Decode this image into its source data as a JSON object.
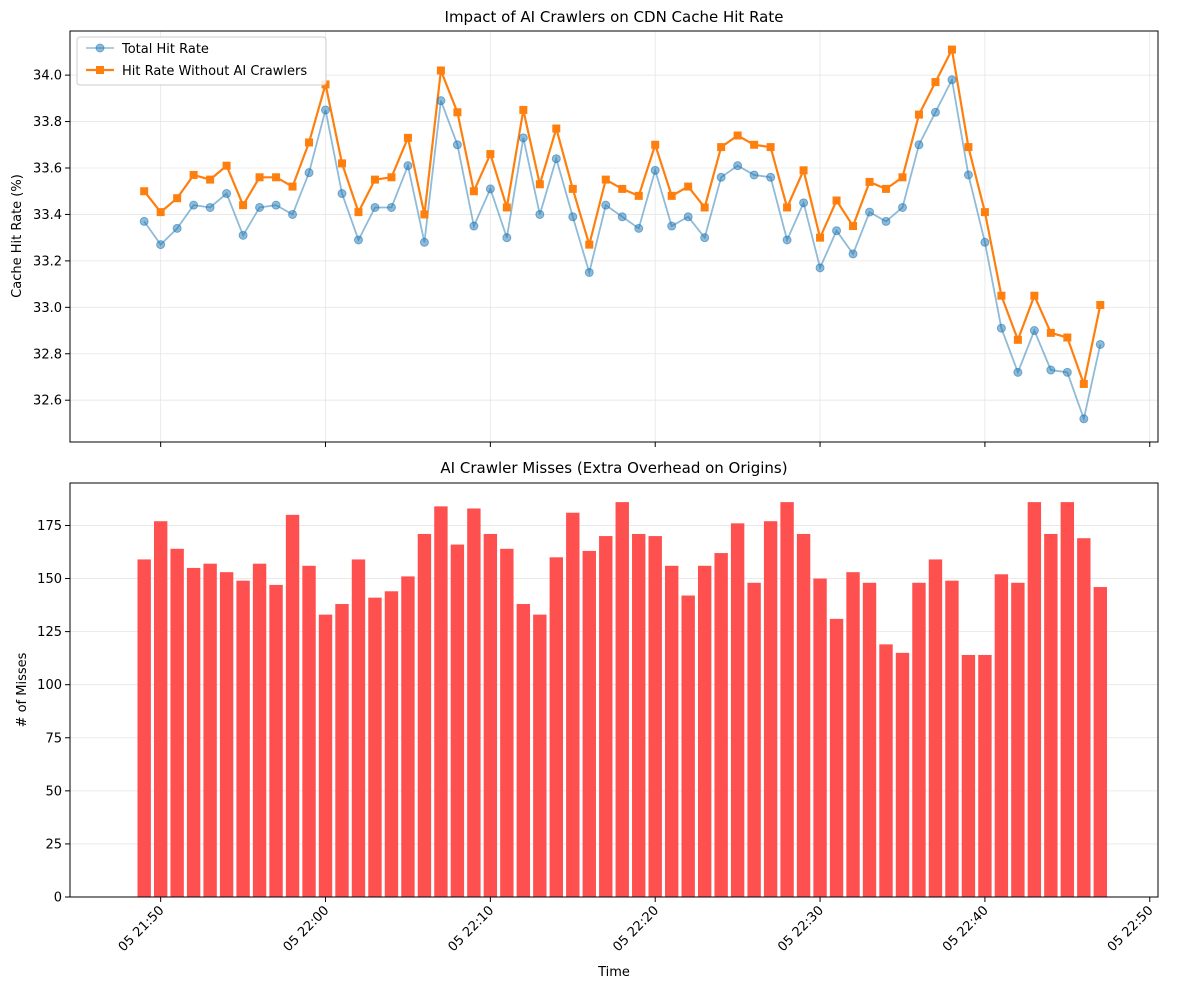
{
  "chart_data": [
    {
      "type": "line",
      "title": "Impact of AI Crawlers on CDN Cache Hit Rate",
      "xlabel": "",
      "ylabel": "Cache Hit Rate (%)",
      "ylim": [
        32.42,
        34.19
      ],
      "yticks": [
        32.6,
        32.8,
        33.0,
        33.2,
        33.4,
        33.6,
        33.8,
        34.0
      ],
      "ytick_labels": [
        "32.6",
        "32.8",
        "33.0",
        "33.2",
        "33.4",
        "33.6",
        "33.8",
        "34.0"
      ],
      "grid": true,
      "legend_position": "top-left",
      "x_minutes": [
        -1,
        0,
        1,
        2,
        3,
        4,
        5,
        6,
        7,
        8,
        9,
        10,
        11,
        12,
        13,
        14,
        15,
        16,
        17,
        18,
        19,
        20,
        21,
        22,
        23,
        24,
        25,
        26,
        27,
        28,
        29,
        30,
        31,
        32,
        33,
        34,
        35,
        36,
        37,
        38,
        39,
        40,
        41,
        42,
        43,
        44,
        45,
        46,
        47,
        48,
        49,
        50,
        51,
        52,
        53,
        54,
        55,
        56,
        57
      ],
      "series": [
        {
          "name": "Total Hit Rate",
          "color": "#1f77b4",
          "marker": "circle",
          "values": [
            33.37,
            33.27,
            33.34,
            33.44,
            33.43,
            33.49,
            33.31,
            33.43,
            33.44,
            33.4,
            33.58,
            33.85,
            33.49,
            33.29,
            33.43,
            33.43,
            33.61,
            33.28,
            33.89,
            33.7,
            33.35,
            33.51,
            33.3,
            33.73,
            33.4,
            33.64,
            33.39,
            33.15,
            33.44,
            33.39,
            33.34,
            33.59,
            33.35,
            33.39,
            33.3,
            33.56,
            33.61,
            33.57,
            33.56,
            33.29,
            33.45,
            33.17,
            33.33,
            33.23,
            33.41,
            33.37,
            33.43,
            33.7,
            33.84,
            33.98,
            33.57,
            33.28,
            32.91,
            32.72,
            32.9,
            32.73,
            32.72,
            32.52,
            32.84
          ]
        },
        {
          "name": "Hit Rate Without AI Crawlers",
          "color": "#ff7f0e",
          "marker": "square",
          "values": [
            33.5,
            33.41,
            33.47,
            33.57,
            33.55,
            33.61,
            33.44,
            33.56,
            33.56,
            33.52,
            33.71,
            33.96,
            33.62,
            33.41,
            33.55,
            33.56,
            33.73,
            33.4,
            34.02,
            33.84,
            33.5,
            33.66,
            33.43,
            33.85,
            33.53,
            33.77,
            33.51,
            33.27,
            33.55,
            33.51,
            33.48,
            33.7,
            33.48,
            33.52,
            33.43,
            33.69,
            33.74,
            33.7,
            33.69,
            33.43,
            33.59,
            33.3,
            33.46,
            33.35,
            33.54,
            33.51,
            33.56,
            33.83,
            33.97,
            34.11,
            33.69,
            33.41,
            33.05,
            32.86,
            33.05,
            32.89,
            32.87,
            32.67,
            33.01
          ]
        }
      ]
    },
    {
      "type": "bar",
      "title": "AI Crawler Misses (Extra Overhead on Origins)",
      "xlabel": "Time",
      "ylabel": "# of Misses",
      "ylim": [
        0,
        195
      ],
      "yticks": [
        0,
        25,
        50,
        75,
        100,
        125,
        150,
        175
      ],
      "ytick_labels": [
        "0",
        "25",
        "50",
        "75",
        "100",
        "125",
        "150",
        "175"
      ],
      "grid": true,
      "x_minutes": [
        -1,
        0,
        1,
        2,
        3,
        4,
        5,
        6,
        7,
        8,
        9,
        10,
        11,
        12,
        13,
        14,
        15,
        16,
        17,
        18,
        19,
        20,
        21,
        22,
        23,
        24,
        25,
        26,
        27,
        28,
        29,
        30,
        31,
        32,
        33,
        34,
        35,
        36,
        37,
        38,
        39,
        40,
        41,
        42,
        43,
        44,
        45,
        46,
        47,
        48,
        49,
        50,
        51,
        52,
        53,
        54,
        55,
        56,
        57
      ],
      "series": [
        {
          "name": "AI Crawler Misses",
          "color": "#ff5050",
          "values": [
            159,
            177,
            164,
            155,
            157,
            153,
            149,
            157,
            147,
            180,
            156,
            133,
            138,
            159,
            141,
            144,
            151,
            171,
            184,
            166,
            183,
            171,
            164,
            138,
            133,
            160,
            181,
            163,
            170,
            186,
            171,
            170,
            156,
            142,
            156,
            162,
            176,
            148,
            177,
            186,
            171,
            150,
            131,
            153,
            148,
            119,
            115,
            148,
            159,
            149,
            114,
            114,
            152,
            148,
            186,
            171,
            186,
            169,
            146
          ]
        }
      ],
      "x_range_minutes": [
        -5.5,
        60.5
      ],
      "xticks_minutes": [
        0,
        10,
        20,
        30,
        40,
        50,
        60
      ],
      "xtick_labels": [
        "05 21:50",
        "05 22:00",
        "05 22:10",
        "05 22:20",
        "05 22:30",
        "05 22:40",
        "05 22:50"
      ]
    }
  ]
}
